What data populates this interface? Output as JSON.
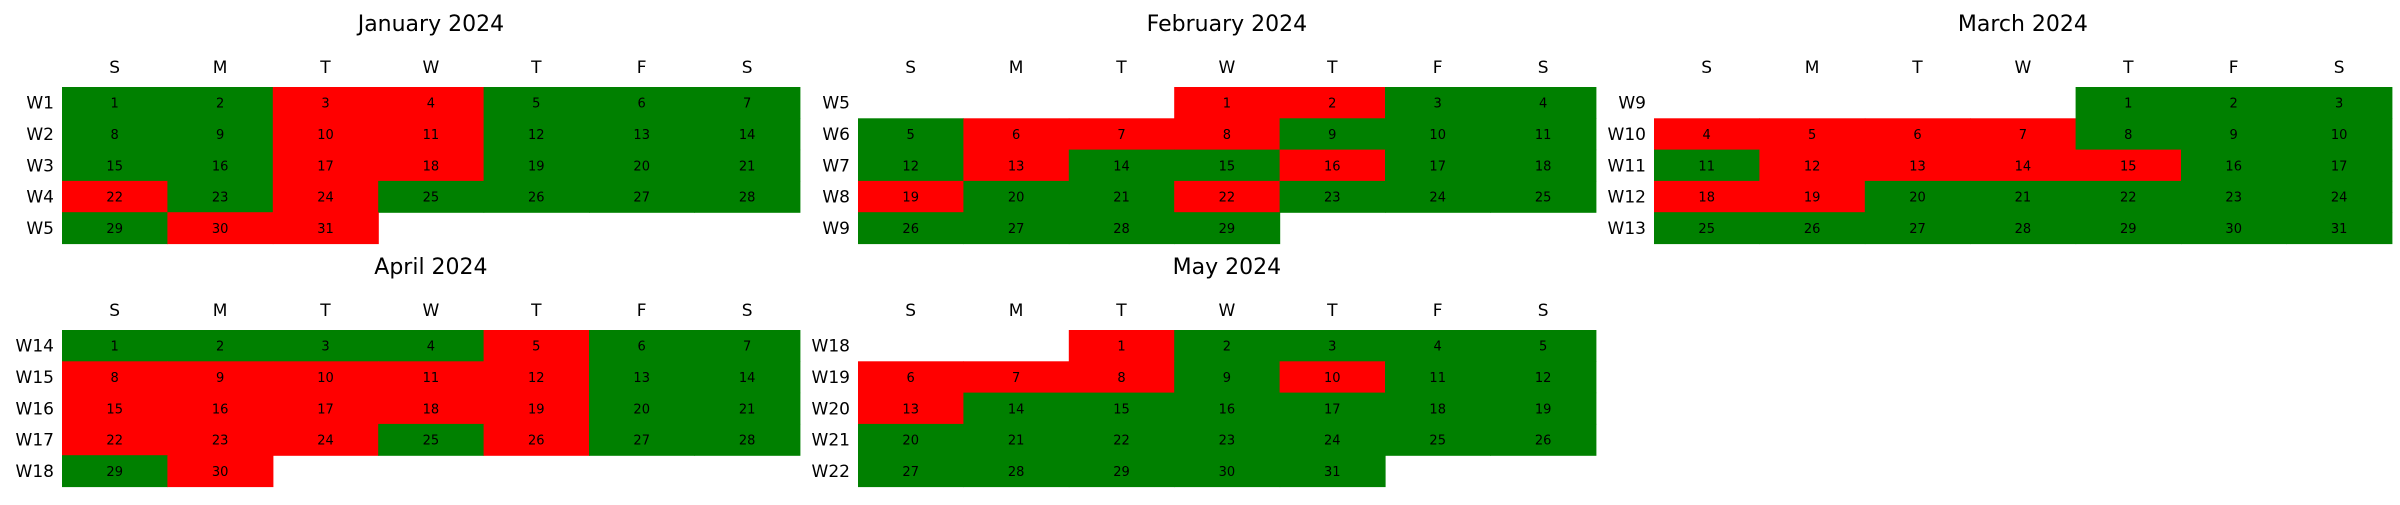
{
  "chart_data": {
    "type": "heatmap",
    "weekday_labels": [
      "S",
      "M",
      "T",
      "W",
      "T",
      "F",
      "S"
    ],
    "colors": {
      "good": "#008000",
      "bad": "#ff0000"
    },
    "months": [
      {
        "title": "January 2024",
        "weeks": [
          {
            "label": "W1",
            "days": [
              {
                "d": 1,
                "s": "good"
              },
              {
                "d": 2,
                "s": "good"
              },
              {
                "d": 3,
                "s": "bad"
              },
              {
                "d": 4,
                "s": "bad"
              },
              {
                "d": 5,
                "s": "good"
              },
              {
                "d": 6,
                "s": "good"
              },
              {
                "d": 7,
                "s": "good"
              }
            ]
          },
          {
            "label": "W2",
            "days": [
              {
                "d": 8,
                "s": "good"
              },
              {
                "d": 9,
                "s": "good"
              },
              {
                "d": 10,
                "s": "bad"
              },
              {
                "d": 11,
                "s": "bad"
              },
              {
                "d": 12,
                "s": "good"
              },
              {
                "d": 13,
                "s": "good"
              },
              {
                "d": 14,
                "s": "good"
              }
            ]
          },
          {
            "label": "W3",
            "days": [
              {
                "d": 15,
                "s": "good"
              },
              {
                "d": 16,
                "s": "good"
              },
              {
                "d": 17,
                "s": "bad"
              },
              {
                "d": 18,
                "s": "bad"
              },
              {
                "d": 19,
                "s": "good"
              },
              {
                "d": 20,
                "s": "good"
              },
              {
                "d": 21,
                "s": "good"
              }
            ]
          },
          {
            "label": "W4",
            "days": [
              {
                "d": 22,
                "s": "bad"
              },
              {
                "d": 23,
                "s": "good"
              },
              {
                "d": 24,
                "s": "bad"
              },
              {
                "d": 25,
                "s": "good"
              },
              {
                "d": 26,
                "s": "good"
              },
              {
                "d": 27,
                "s": "good"
              },
              {
                "d": 28,
                "s": "good"
              }
            ]
          },
          {
            "label": "W5",
            "days": [
              {
                "d": 29,
                "s": "good"
              },
              {
                "d": 30,
                "s": "bad"
              },
              {
                "d": 31,
                "s": "bad"
              },
              null,
              null,
              null,
              null
            ]
          }
        ]
      },
      {
        "title": "February 2024",
        "weeks": [
          {
            "label": "W5",
            "days": [
              null,
              null,
              null,
              {
                "d": 1,
                "s": "bad"
              },
              {
                "d": 2,
                "s": "bad"
              },
              {
                "d": 3,
                "s": "good"
              },
              {
                "d": 4,
                "s": "good"
              }
            ]
          },
          {
            "label": "W6",
            "days": [
              {
                "d": 5,
                "s": "good"
              },
              {
                "d": 6,
                "s": "bad"
              },
              {
                "d": 7,
                "s": "bad"
              },
              {
                "d": 8,
                "s": "bad"
              },
              {
                "d": 9,
                "s": "good"
              },
              {
                "d": 10,
                "s": "good"
              },
              {
                "d": 11,
                "s": "good"
              }
            ]
          },
          {
            "label": "W7",
            "days": [
              {
                "d": 12,
                "s": "good"
              },
              {
                "d": 13,
                "s": "bad"
              },
              {
                "d": 14,
                "s": "good"
              },
              {
                "d": 15,
                "s": "good"
              },
              {
                "d": 16,
                "s": "bad"
              },
              {
                "d": 17,
                "s": "good"
              },
              {
                "d": 18,
                "s": "good"
              }
            ]
          },
          {
            "label": "W8",
            "days": [
              {
                "d": 19,
                "s": "bad"
              },
              {
                "d": 20,
                "s": "good"
              },
              {
                "d": 21,
                "s": "good"
              },
              {
                "d": 22,
                "s": "bad"
              },
              {
                "d": 23,
                "s": "good"
              },
              {
                "d": 24,
                "s": "good"
              },
              {
                "d": 25,
                "s": "good"
              }
            ]
          },
          {
            "label": "W9",
            "days": [
              {
                "d": 26,
                "s": "good"
              },
              {
                "d": 27,
                "s": "good"
              },
              {
                "d": 28,
                "s": "good"
              },
              {
                "d": 29,
                "s": "good"
              },
              null,
              null,
              null
            ]
          }
        ]
      },
      {
        "title": "March 2024",
        "weeks": [
          {
            "label": "W9",
            "days": [
              null,
              null,
              null,
              null,
              {
                "d": 1,
                "s": "good"
              },
              {
                "d": 2,
                "s": "good"
              },
              {
                "d": 3,
                "s": "good"
              }
            ]
          },
          {
            "label": "W10",
            "days": [
              {
                "d": 4,
                "s": "bad"
              },
              {
                "d": 5,
                "s": "bad"
              },
              {
                "d": 6,
                "s": "bad"
              },
              {
                "d": 7,
                "s": "bad"
              },
              {
                "d": 8,
                "s": "good"
              },
              {
                "d": 9,
                "s": "good"
              },
              {
                "d": 10,
                "s": "good"
              }
            ]
          },
          {
            "label": "W11",
            "days": [
              {
                "d": 11,
                "s": "good"
              },
              {
                "d": 12,
                "s": "bad"
              },
              {
                "d": 13,
                "s": "bad"
              },
              {
                "d": 14,
                "s": "bad"
              },
              {
                "d": 15,
                "s": "bad"
              },
              {
                "d": 16,
                "s": "good"
              },
              {
                "d": 17,
                "s": "good"
              }
            ]
          },
          {
            "label": "W12",
            "days": [
              {
                "d": 18,
                "s": "bad"
              },
              {
                "d": 19,
                "s": "bad"
              },
              {
                "d": 20,
                "s": "good"
              },
              {
                "d": 21,
                "s": "good"
              },
              {
                "d": 22,
                "s": "good"
              },
              {
                "d": 23,
                "s": "good"
              },
              {
                "d": 24,
                "s": "good"
              }
            ]
          },
          {
            "label": "W13",
            "days": [
              {
                "d": 25,
                "s": "good"
              },
              {
                "d": 26,
                "s": "good"
              },
              {
                "d": 27,
                "s": "good"
              },
              {
                "d": 28,
                "s": "good"
              },
              {
                "d": 29,
                "s": "good"
              },
              {
                "d": 30,
                "s": "good"
              },
              {
                "d": 31,
                "s": "good"
              }
            ]
          }
        ]
      },
      {
        "title": "April 2024",
        "weeks": [
          {
            "label": "W14",
            "days": [
              {
                "d": 1,
                "s": "good"
              },
              {
                "d": 2,
                "s": "good"
              },
              {
                "d": 3,
                "s": "good"
              },
              {
                "d": 4,
                "s": "good"
              },
              {
                "d": 5,
                "s": "bad"
              },
              {
                "d": 6,
                "s": "good"
              },
              {
                "d": 7,
                "s": "good"
              }
            ]
          },
          {
            "label": "W15",
            "days": [
              {
                "d": 8,
                "s": "bad"
              },
              {
                "d": 9,
                "s": "bad"
              },
              {
                "d": 10,
                "s": "bad"
              },
              {
                "d": 11,
                "s": "bad"
              },
              {
                "d": 12,
                "s": "bad"
              },
              {
                "d": 13,
                "s": "good"
              },
              {
                "d": 14,
                "s": "good"
              }
            ]
          },
          {
            "label": "W16",
            "days": [
              {
                "d": 15,
                "s": "bad"
              },
              {
                "d": 16,
                "s": "bad"
              },
              {
                "d": 17,
                "s": "bad"
              },
              {
                "d": 18,
                "s": "bad"
              },
              {
                "d": 19,
                "s": "bad"
              },
              {
                "d": 20,
                "s": "good"
              },
              {
                "d": 21,
                "s": "good"
              }
            ]
          },
          {
            "label": "W17",
            "days": [
              {
                "d": 22,
                "s": "bad"
              },
              {
                "d": 23,
                "s": "bad"
              },
              {
                "d": 24,
                "s": "bad"
              },
              {
                "d": 25,
                "s": "good"
              },
              {
                "d": 26,
                "s": "bad"
              },
              {
                "d": 27,
                "s": "good"
              },
              {
                "d": 28,
                "s": "good"
              }
            ]
          },
          {
            "label": "W18",
            "days": [
              {
                "d": 29,
                "s": "good"
              },
              {
                "d": 30,
                "s": "bad"
              },
              null,
              null,
              null,
              null,
              null
            ]
          }
        ]
      },
      {
        "title": "May 2024",
        "weeks": [
          {
            "label": "W18",
            "days": [
              null,
              null,
              {
                "d": 1,
                "s": "bad"
              },
              {
                "d": 2,
                "s": "good"
              },
              {
                "d": 3,
                "s": "good"
              },
              {
                "d": 4,
                "s": "good"
              },
              {
                "d": 5,
                "s": "good"
              }
            ]
          },
          {
            "label": "W19",
            "days": [
              {
                "d": 6,
                "s": "bad"
              },
              {
                "d": 7,
                "s": "bad"
              },
              {
                "d": 8,
                "s": "bad"
              },
              {
                "d": 9,
                "s": "good"
              },
              {
                "d": 10,
                "s": "bad"
              },
              {
                "d": 11,
                "s": "good"
              },
              {
                "d": 12,
                "s": "good"
              }
            ]
          },
          {
            "label": "W20",
            "days": [
              {
                "d": 13,
                "s": "bad"
              },
              {
                "d": 14,
                "s": "good"
              },
              {
                "d": 15,
                "s": "good"
              },
              {
                "d": 16,
                "s": "good"
              },
              {
                "d": 17,
                "s": "good"
              },
              {
                "d": 18,
                "s": "good"
              },
              {
                "d": 19,
                "s": "good"
              }
            ]
          },
          {
            "label": "W21",
            "days": [
              {
                "d": 20,
                "s": "good"
              },
              {
                "d": 21,
                "s": "good"
              },
              {
                "d": 22,
                "s": "good"
              },
              {
                "d": 23,
                "s": "good"
              },
              {
                "d": 24,
                "s": "good"
              },
              {
                "d": 25,
                "s": "good"
              },
              {
                "d": 26,
                "s": "good"
              }
            ]
          },
          {
            "label": "W22",
            "days": [
              {
                "d": 27,
                "s": "good"
              },
              {
                "d": 28,
                "s": "good"
              },
              {
                "d": 29,
                "s": "good"
              },
              {
                "d": 30,
                "s": "good"
              },
              {
                "d": 31,
                "s": "good"
              },
              null,
              null
            ]
          }
        ]
      }
    ]
  }
}
